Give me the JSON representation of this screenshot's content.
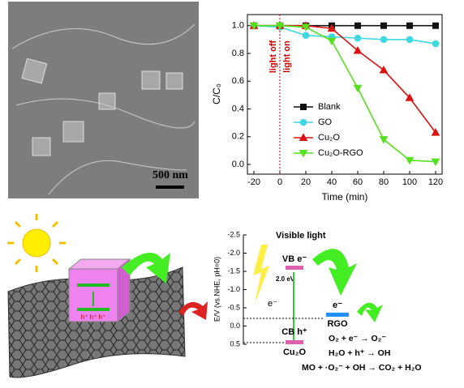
{
  "chart_data": {
    "type": "line",
    "x_label": "Time (min)",
    "y_label": "C/C₀",
    "x": [
      -20,
      0,
      20,
      40,
      60,
      80,
      100,
      120
    ],
    "series": [
      {
        "name": "Blank",
        "color": "#111111",
        "marker": "square",
        "values": [
          1.0,
          1.0,
          1.0,
          1.0,
          1.0,
          1.0,
          1.0,
          1.0
        ]
      },
      {
        "name": "GO",
        "color": "#3fd8e0",
        "marker": "circle",
        "values": [
          1.0,
          0.99,
          0.93,
          0.92,
          0.91,
          0.9,
          0.9,
          0.87
        ]
      },
      {
        "name": "Cu₂O",
        "color": "#dd1111",
        "marker": "triangle",
        "values": [
          1.0,
          1.0,
          1.0,
          0.98,
          0.82,
          0.68,
          0.48,
          0.23
        ]
      },
      {
        "name": "Cu₂O-RGO",
        "color": "#55e020",
        "marker": "triangle-down",
        "values": [
          1.0,
          1.0,
          0.99,
          0.89,
          0.55,
          0.18,
          0.03,
          0.02
        ]
      }
    ],
    "annotations": [
      "light off",
      "light on"
    ],
    "xlim": [
      -25,
      125
    ],
    "xticks": [
      -20,
      0,
      20,
      40,
      60,
      80,
      100,
      120
    ],
    "ylim": [
      -0.07,
      1.08
    ],
    "yticks": [
      {
        "value": 0,
        "label": "0.0"
      },
      0.2,
      0.4,
      0.6,
      0.8,
      {
        "value": 1,
        "label": "1.0"
      }
    ]
  },
  "sem": {
    "scale_bar": "500 nm"
  },
  "diagram": {
    "cube_holes": "h⁺ h⁺ h⁺",
    "axis_label": "E/V (vs.NHE, pH=0)",
    "axis_ticks": [
      "-2.5",
      "-2.0",
      "-1.5",
      "-1.0",
      "-0.5",
      "0.0",
      "0.5"
    ],
    "visible_light": "Visible light",
    "vb": "VB e⁻",
    "gap": "2.0 eV",
    "electron": "e⁻",
    "cb": "CB h⁺",
    "cu2o": "Cu₂O",
    "rgo_electron": "e⁻",
    "rgo": "RGO",
    "equations": [
      "O₂ + e⁻ → O₂⁻",
      "H₂O + h⁺ → OH",
      "MO + ·O₂⁻ + OH → CO₂ + H₂O"
    ]
  }
}
